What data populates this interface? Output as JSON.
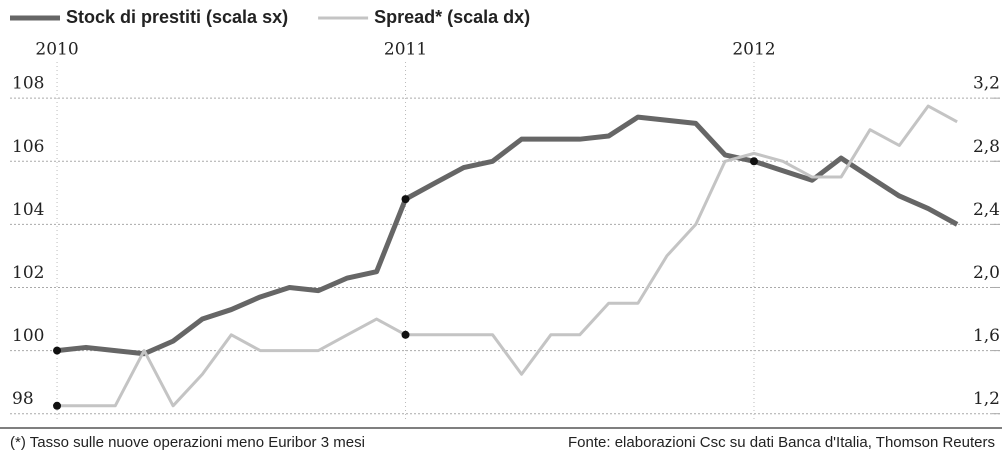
{
  "chart_data": {
    "type": "line",
    "x": [
      2010,
      2010.083,
      2010.167,
      2010.25,
      2010.333,
      2010.417,
      2010.5,
      2010.583,
      2010.667,
      2010.75,
      2010.833,
      2010.917,
      2011,
      2011.083,
      2011.167,
      2011.25,
      2011.333,
      2011.417,
      2011.5,
      2011.583,
      2011.667,
      2011.75,
      2011.833,
      2011.917,
      2012,
      2012.083,
      2012.167,
      2012.25,
      2012.333,
      2012.417,
      2012.5,
      2012.583
    ],
    "series": [
      {
        "name": "Stock di prestiti (scala sx)",
        "color": "#666666",
        "axis": "y",
        "values": [
          100.0,
          100.1,
          100.0,
          99.9,
          100.3,
          101.0,
          101.3,
          101.7,
          102.0,
          101.9,
          102.3,
          102.5,
          104.8,
          105.3,
          105.8,
          106.0,
          106.7,
          106.7,
          106.7,
          106.8,
          107.4,
          107.3,
          107.2,
          106.2,
          106.0,
          105.7,
          105.4,
          106.1,
          105.5,
          104.9,
          104.5,
          104.0
        ]
      },
      {
        "name": "Spread* (scala dx)",
        "color": "#c4c4c4",
        "axis": "y2",
        "values": [
          1.25,
          1.25,
          1.25,
          1.6,
          1.25,
          1.45,
          1.7,
          1.6,
          1.6,
          1.6,
          1.7,
          1.8,
          1.7,
          1.7,
          1.7,
          1.7,
          1.45,
          1.7,
          1.7,
          1.9,
          1.9,
          2.2,
          2.4,
          2.8,
          2.85,
          2.8,
          2.7,
          2.7,
          3.0,
          2.9,
          3.15,
          3.05
        ]
      }
    ],
    "xlim": [
      2009.865,
      2012.706
    ],
    "xticks": [
      2010,
      2011,
      2012
    ],
    "ylim": [
      97.8,
      108.1
    ],
    "yticks": [
      98,
      100,
      102,
      104,
      106,
      108
    ],
    "y2lim": [
      1.16,
      3.22
    ],
    "y2ticks": [
      {
        "value": 1.2,
        "label": "1,2"
      },
      {
        "value": 1.6,
        "label": "1,6"
      },
      {
        "value": 2.0,
        "label": "2,0"
      },
      {
        "value": 2.4,
        "label": "2,4"
      },
      {
        "value": 2.8,
        "label": "2,8"
      },
      {
        "value": 3.2,
        "label": "3,2"
      }
    ],
    "grid": true,
    "footnote": "(*) Tasso sulle nuove operazioni meno Euribor 3 mesi",
    "source": "Fonte: elaborazioni Csc su dati Banca d'Italia, Thomson Reuters"
  }
}
